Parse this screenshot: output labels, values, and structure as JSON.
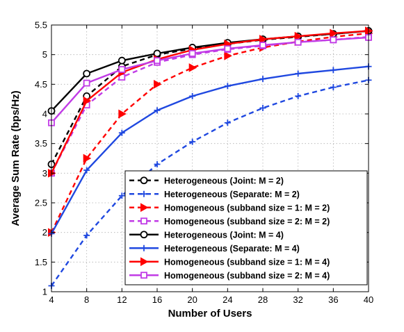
{
  "chart_data": {
    "type": "line",
    "xlabel": "Number of Users",
    "ylabel": "Average Sum Rate (bps/Hz)",
    "xlim": [
      4,
      40
    ],
    "ylim": [
      1,
      5.5
    ],
    "xticks": [
      4,
      8,
      12,
      16,
      20,
      24,
      28,
      32,
      36,
      40
    ],
    "yticks": [
      1,
      1.5,
      2,
      2.5,
      3,
      3.5,
      4,
      4.5,
      5,
      5.5
    ],
    "grid": true,
    "legend_position": "bottom-right",
    "x": [
      4,
      8,
      12,
      16,
      20,
      24,
      28,
      32,
      36,
      40
    ],
    "series": [
      {
        "name": "Heterogeneous (Joint: M = 2)",
        "color": "#000000",
        "dashed": true,
        "marker": "circle-open",
        "values": [
          3.15,
          4.3,
          4.8,
          5.0,
          5.1,
          5.18,
          5.25,
          5.3,
          5.35,
          5.4
        ]
      },
      {
        "name": "Heterogeneous (Separate: M = 2)",
        "color": "#1f48e0",
        "dashed": true,
        "marker": "plus",
        "values": [
          1.1,
          1.95,
          2.62,
          3.15,
          3.53,
          3.85,
          4.1,
          4.3,
          4.45,
          4.57
        ]
      },
      {
        "name": "Homogeneous (subband size = 1: M = 2)",
        "color": "#ff0000",
        "dashed": true,
        "marker": "triangle-right",
        "values": [
          2.0,
          3.25,
          4.0,
          4.5,
          4.78,
          4.98,
          5.12,
          5.22,
          5.3,
          5.36
        ]
      },
      {
        "name": "Homogeneous (subband size = 2: M = 2)",
        "color": "#c13be6",
        "dashed": true,
        "marker": "square",
        "values": [
          3.0,
          4.15,
          4.62,
          4.87,
          5.0,
          5.09,
          5.15,
          5.21,
          5.25,
          5.3
        ]
      },
      {
        "name": "Heterogeneous (Joint: M = 4)",
        "color": "#000000",
        "dashed": false,
        "marker": "circle-open",
        "values": [
          4.05,
          4.68,
          4.9,
          5.02,
          5.12,
          5.2,
          5.26,
          5.31,
          5.35,
          5.4
        ]
      },
      {
        "name": "Heterogeneous (Separate: M = 4)",
        "color": "#1f48e0",
        "dashed": false,
        "marker": "plus",
        "values": [
          1.98,
          3.05,
          3.68,
          4.06,
          4.3,
          4.47,
          4.59,
          4.68,
          4.74,
          4.8
        ]
      },
      {
        "name": "Homogeneous (subband size = 1: M = 4)",
        "color": "#ff0000",
        "dashed": false,
        "marker": "triangle-right",
        "values": [
          3.0,
          4.22,
          4.7,
          4.92,
          5.08,
          5.18,
          5.26,
          5.31,
          5.36,
          5.4
        ]
      },
      {
        "name": "Homogeneous (subband size = 2: M = 4)",
        "color": "#c13be6",
        "dashed": false,
        "marker": "square",
        "values": [
          3.85,
          4.52,
          4.75,
          4.9,
          5.02,
          5.1,
          5.16,
          5.21,
          5.25,
          5.29
        ]
      }
    ]
  }
}
